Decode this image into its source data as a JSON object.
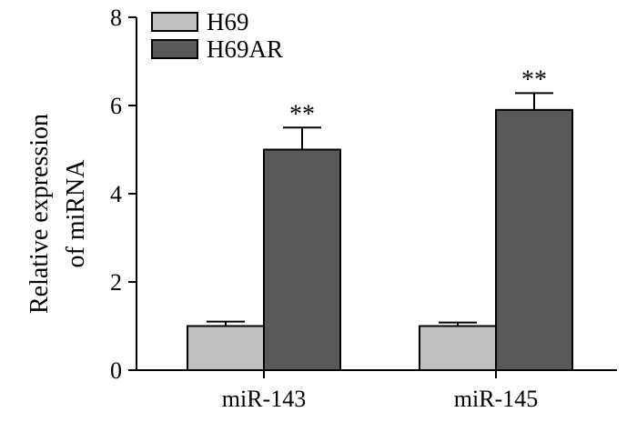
{
  "chart_data": {
    "type": "bar",
    "title": "",
    "ylabel_lines": [
      "Relative expression",
      "of miRNA"
    ],
    "xlabel": "",
    "categories": [
      "miR-143",
      "miR-145"
    ],
    "series": [
      {
        "name": "H69",
        "color": "#bfbfbf",
        "values": [
          1.0,
          1.0
        ],
        "errors": [
          0.1,
          0.08
        ]
      },
      {
        "name": "H69AR",
        "color": "#595959",
        "values": [
          5.0,
          5.9
        ],
        "errors": [
          0.5,
          0.38
        ]
      }
    ],
    "annotations": [
      {
        "category": "miR-143",
        "series": "H69AR",
        "text": "**"
      },
      {
        "category": "miR-145",
        "series": "H69AR",
        "text": "**"
      }
    ],
    "ylim": [
      0,
      8
    ],
    "yticks": [
      0,
      2,
      4,
      6,
      8
    ],
    "grid": false,
    "legend_position": "top-left"
  }
}
